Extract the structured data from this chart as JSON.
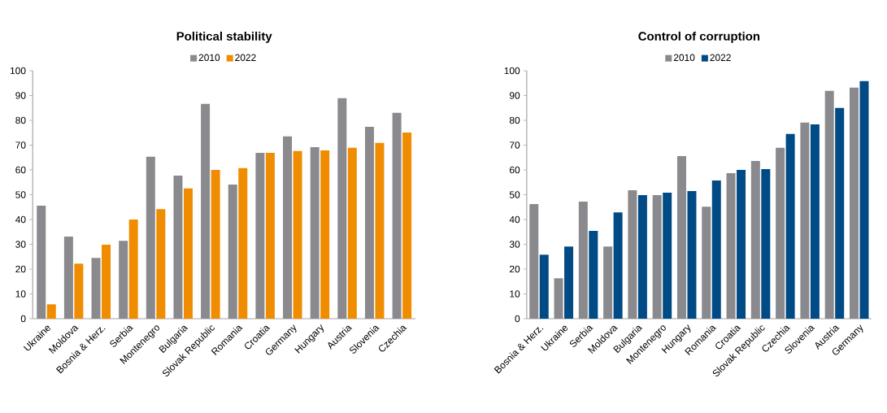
{
  "chart_data": [
    {
      "type": "bar",
      "title": "Political stability",
      "categories": [
        "Ukraine",
        "Moldova",
        "Bosnia & Herz.",
        "Serbia",
        "Montenegro",
        "Bulgaria",
        "Slovak Republic",
        "Romania",
        "Croatia",
        "Germany",
        "Hungary",
        "Austria",
        "Slovenia",
        "Czechia"
      ],
      "series": [
        {
          "name": "2010",
          "color": "#8a8a8e",
          "values": [
            45.6,
            33.1,
            24.5,
            31.4,
            65.3,
            57.7,
            86.6,
            54.1,
            66.9,
            73.5,
            69.2,
            88.9,
            77.4,
            83.0
          ]
        },
        {
          "name": "2022",
          "color": "#f08c00",
          "values": [
            5.8,
            22.2,
            29.8,
            40.0,
            44.2,
            52.5,
            60.0,
            60.7,
            66.9,
            67.6,
            67.9,
            68.9,
            70.9,
            75.1
          ]
        }
      ],
      "ylim": [
        0,
        100
      ],
      "yticks": [
        0,
        10,
        20,
        30,
        40,
        50,
        60,
        70,
        80,
        90,
        100
      ],
      "legend": "top"
    },
    {
      "type": "bar",
      "title": "Control of corruption",
      "categories": [
        "Bosnia & Herz.",
        "Ukraine",
        "Serbia",
        "Moldova",
        "Bulgaria",
        "Montenegro",
        "Hungary",
        "Romania",
        "Croatia",
        "Slovak Republic",
        "Czechia",
        "Slovenia",
        "Austria",
        "Germany"
      ],
      "series": [
        {
          "name": "2010",
          "color": "#8a8a8e",
          "values": [
            46.2,
            16.3,
            47.2,
            29.1,
            51.8,
            49.8,
            65.6,
            45.2,
            58.7,
            63.6,
            68.9,
            79.1,
            91.9,
            93.2
          ]
        },
        {
          "name": "2022",
          "color": "#004a85",
          "values": [
            25.8,
            29.1,
            35.4,
            42.9,
            49.8,
            50.8,
            51.5,
            55.7,
            60.0,
            60.3,
            74.5,
            78.4,
            85.0,
            95.8
          ]
        }
      ],
      "ylim": [
        0,
        100
      ],
      "yticks": [
        0,
        10,
        20,
        30,
        40,
        50,
        60,
        70,
        80,
        90,
        100
      ],
      "legend": "top"
    }
  ]
}
